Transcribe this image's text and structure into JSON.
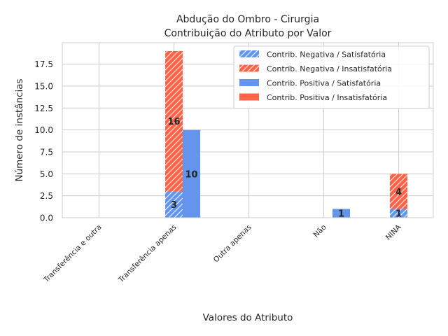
{
  "chart_data": {
    "type": "bar",
    "title_line1": "Abdução do Ombro - Cirurgia",
    "title_line2": "Contribuição do Atributo por Valor",
    "xlabel": "Valores do Atributo",
    "ylabel": "Número de instâncias",
    "categories": [
      "Transferência e outra",
      "Transferência apenas",
      "Outra apenas",
      "Não",
      "NINA"
    ],
    "ylim": [
      0,
      19.95
    ],
    "yticks": [
      0.0,
      2.5,
      5.0,
      7.5,
      10.0,
      12.5,
      15.0,
      17.5
    ],
    "ytick_labels": [
      "0.0",
      "2.5",
      "5.0",
      "7.5",
      "10.0",
      "12.5",
      "15.0",
      "17.5"
    ],
    "grid": true,
    "legend_position": "upper right",
    "series": [
      {
        "name": "Contrib. Negativa / Satisfatória",
        "group": "negativa",
        "color": "#6495ed",
        "hatch": true,
        "values": [
          0,
          3,
          0,
          0,
          1
        ]
      },
      {
        "name": "Contrib. Negativa / Insatisfatória",
        "group": "negativa",
        "color": "#ff6347",
        "hatch": true,
        "values": [
          0,
          16,
          0,
          0,
          4
        ]
      },
      {
        "name": "Contrib. Positiva / Satisfatória",
        "group": "positiva",
        "color": "#6495ed",
        "hatch": false,
        "values": [
          0,
          10,
          0,
          1,
          0
        ]
      },
      {
        "name": "Contrib. Positiva / Insatisfatória",
        "group": "positiva",
        "color": "#ff6347",
        "hatch": false,
        "values": [
          0,
          0,
          0,
          0,
          0
        ]
      }
    ]
  }
}
